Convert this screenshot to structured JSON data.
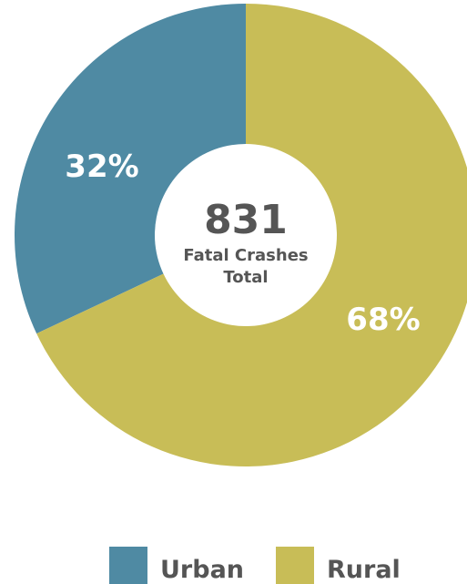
{
  "chart_data": {
    "type": "pie",
    "style": "donut",
    "categories": [
      "Urban",
      "Rural"
    ],
    "values": [
      32,
      68
    ],
    "value_labels": [
      "32%",
      "68%"
    ],
    "colors": [
      "#4f8aa3",
      "#c8bd57"
    ],
    "center": {
      "total": "831",
      "caption_line1": "Fatal Crashes",
      "caption_line2": "Total"
    },
    "legend": {
      "placement": "bottom",
      "items": [
        {
          "label": "Urban",
          "color": "#4f8aa3"
        },
        {
          "label": "Rural",
          "color": "#c8bd57"
        }
      ]
    }
  }
}
